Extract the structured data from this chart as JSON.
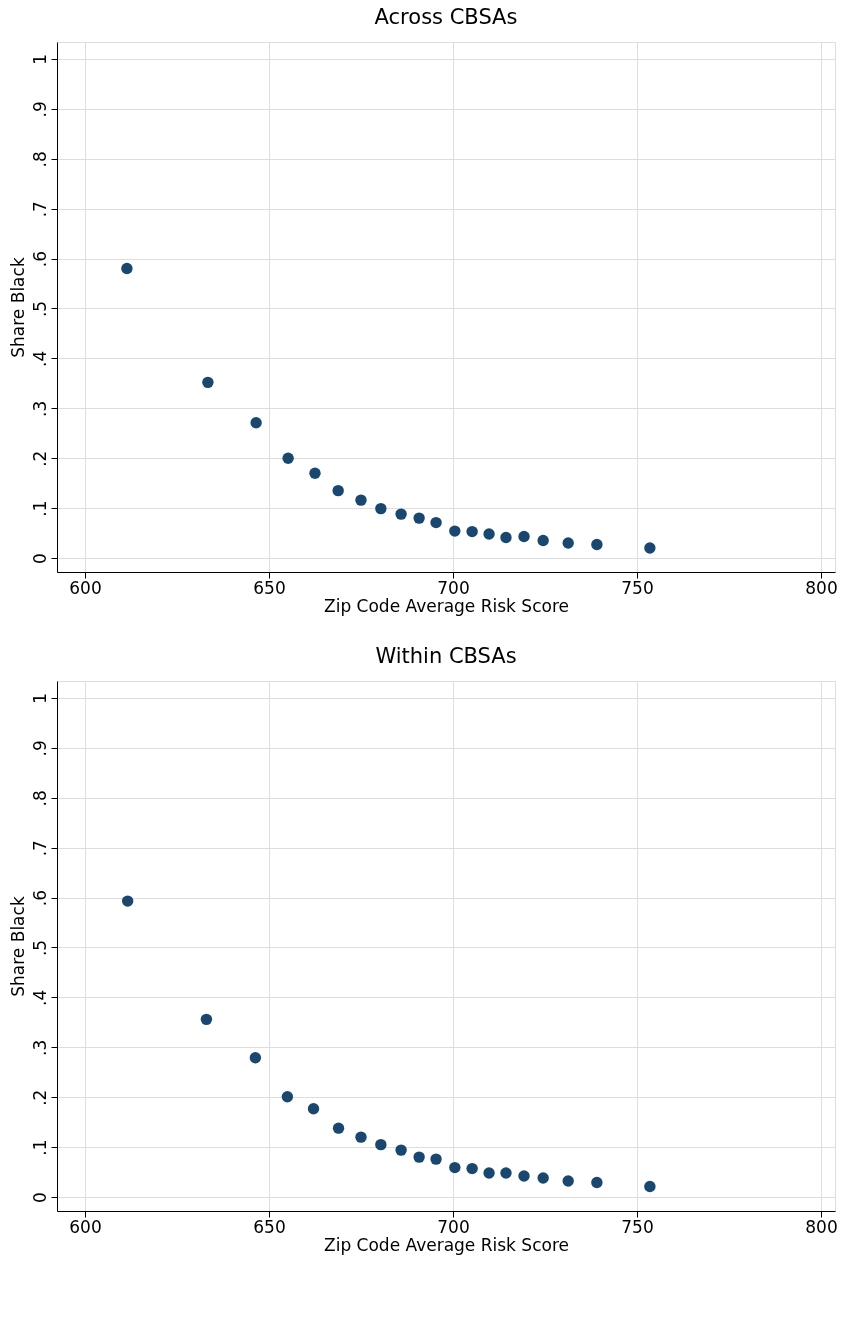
{
  "chart_data": [
    {
      "type": "scatter",
      "title": "Across CBSAs",
      "xlabel": "Zip Code Average Risk Score",
      "ylabel": "Share Black",
      "x": [
        611.4,
        633.4,
        646.5,
        655.2,
        662.5,
        668.8,
        675.0,
        680.4,
        685.9,
        690.8,
        695.4,
        700.5,
        705.2,
        709.8,
        714.4,
        719.3,
        724.5,
        731.3,
        739.1,
        753.5
      ],
      "series": [
        {
          "color": "#1a476f",
          "values": [
            0.58,
            0.352,
            0.271,
            0.2,
            0.17,
            0.135,
            0.116,
            0.099,
            0.088,
            0.08,
            0.071,
            0.054,
            0.053,
            0.048,
            0.041,
            0.043,
            0.035,
            0.03,
            0.027,
            0.02
          ]
        }
      ],
      "xlim": [
        592.4,
        803.8
      ],
      "xticks": [
        600,
        650,
        700,
        750,
        800
      ],
      "ylim": [
        -0.028,
        1.034
      ],
      "yticks": [
        0,
        {
          "value": 0.1,
          "label": ".1"
        },
        {
          "value": 0.2,
          "label": ".2"
        },
        {
          "value": 0.3,
          "label": ".3"
        },
        {
          "value": 0.4,
          "label": ".4"
        },
        {
          "value": 0.5,
          "label": ".5"
        },
        {
          "value": 0.6,
          "label": ".6"
        },
        {
          "value": 0.7,
          "label": ".7"
        },
        {
          "value": 0.8,
          "label": ".8"
        },
        {
          "value": 0.9,
          "label": ".9"
        },
        1
      ],
      "grid": true,
      "marker": "circle"
    },
    {
      "type": "scatter",
      "title": "Within CBSAs",
      "xlabel": "Zip Code Average Risk Score",
      "ylabel": "Share Black",
      "x": [
        611.6,
        633.0,
        646.3,
        655.0,
        662.1,
        668.9,
        675.0,
        680.4,
        685.9,
        690.8,
        695.4,
        700.5,
        705.2,
        709.8,
        714.4,
        719.3,
        724.5,
        731.3,
        739.1,
        753.5
      ],
      "series": [
        {
          "color": "#1a476f",
          "values": [
            0.593,
            0.356,
            0.279,
            0.201,
            0.177,
            0.138,
            0.12,
            0.105,
            0.094,
            0.08,
            0.076,
            0.059,
            0.057,
            0.048,
            0.048,
            0.042,
            0.038,
            0.032,
            0.029,
            0.021
          ]
        }
      ],
      "xlim": [
        592.4,
        803.8
      ],
      "xticks": [
        600,
        650,
        700,
        750,
        800
      ],
      "ylim": [
        -0.028,
        1.034
      ],
      "yticks": [
        0,
        {
          "value": 0.1,
          "label": ".1"
        },
        {
          "value": 0.2,
          "label": ".2"
        },
        {
          "value": 0.3,
          "label": ".3"
        },
        {
          "value": 0.4,
          "label": ".4"
        },
        {
          "value": 0.5,
          "label": ".5"
        },
        {
          "value": 0.6,
          "label": ".6"
        },
        {
          "value": 0.7,
          "label": ".7"
        },
        {
          "value": 0.8,
          "label": ".8"
        },
        {
          "value": 0.9,
          "label": ".9"
        },
        1
      ],
      "grid": true,
      "marker": "circle"
    }
  ]
}
